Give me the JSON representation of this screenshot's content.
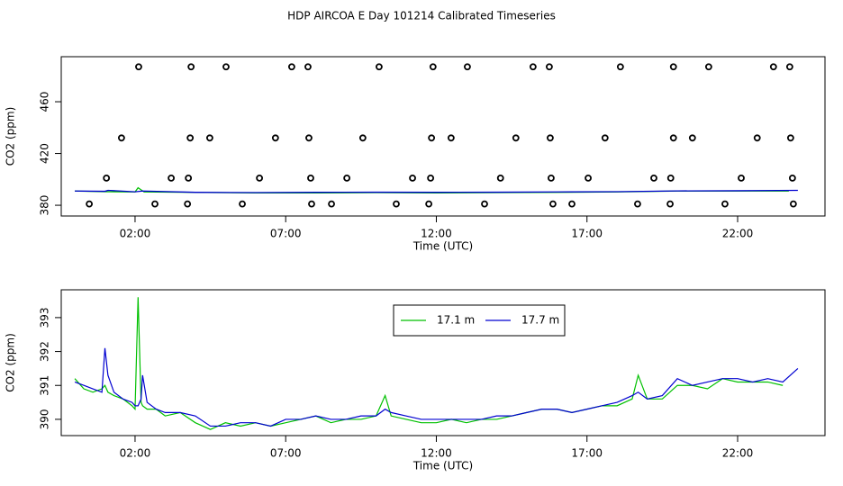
{
  "chart_data": [
    {
      "type": "scatter",
      "title": "HDP AIRCOA E  Day 101214  Calibrated Timeseries",
      "x_label": "Time (UTC)",
      "y_label": "CO2 (ppm)",
      "xlim": [
        -0.45,
        24.9
      ],
      "ylim": [
        371.7,
        494.8
      ],
      "xticks": [
        {
          "value": 2,
          "label": "02:00"
        },
        {
          "value": 7,
          "label": "07:00"
        },
        {
          "value": 12,
          "label": "12:00"
        },
        {
          "value": 17,
          "label": "17:00"
        },
        {
          "value": 22,
          "label": "22:00"
        }
      ],
      "yticks": [
        380,
        420,
        460
      ],
      "color": "#000000",
      "x": [
        2.12,
        3.86,
        5.02,
        7.2,
        7.74,
        10.1,
        11.89,
        13.03,
        15.21,
        15.75,
        18.11,
        19.87,
        21.04,
        23.19,
        23.73,
        1.55,
        3.83,
        4.48,
        6.66,
        7.77,
        9.56,
        11.84,
        12.49,
        14.64,
        15.78,
        17.6,
        19.87,
        20.5,
        22.65,
        23.76,
        1.05,
        3.2,
        3.77,
        6.13,
        7.83,
        9.03,
        11.21,
        11.81,
        14.13,
        15.81,
        17.04,
        19.22,
        19.78,
        22.12,
        23.82,
        0.48,
        2.66,
        3.74,
        5.56,
        7.86,
        8.52,
        10.67,
        11.75,
        13.6,
        15.87,
        16.5,
        18.68,
        19.76,
        21.58,
        23.85
      ],
      "values": [
        487,
        487,
        487,
        487,
        487,
        487,
        487,
        487,
        487,
        487,
        487,
        487,
        487,
        487,
        487,
        432,
        432,
        432,
        432,
        432,
        432,
        432,
        432,
        432,
        432,
        432,
        432,
        432,
        432,
        432,
        401,
        401,
        401,
        401,
        401,
        401,
        401,
        401,
        401,
        401,
        401,
        401,
        401,
        401,
        401,
        381,
        381,
        381,
        381,
        381,
        381,
        381,
        381,
        381,
        381,
        381,
        381,
        381,
        381,
        381
      ],
      "series": [
        {
          "color": "#00c000",
          "x": [
            0,
            1,
            2,
            2.1,
            2.3,
            4,
            6,
            8,
            10,
            12,
            14,
            16,
            18,
            20,
            22,
            23.7
          ],
          "values": [
            391,
            390.5,
            390.3,
            393.5,
            390.3,
            390,
            389.5,
            389.5,
            389.8,
            389.5,
            389.8,
            390,
            390.3,
            391,
            391,
            391
          ]
        },
        {
          "color": "#0000d0",
          "x": [
            0,
            1,
            1.1,
            2,
            2.25,
            4,
            6,
            8,
            10,
            12,
            14,
            16,
            18,
            20,
            22,
            24
          ],
          "values": [
            391,
            390.8,
            391.5,
            390.4,
            391,
            390,
            389.8,
            390,
            390.1,
            390,
            390.1,
            390.3,
            390.5,
            391.1,
            391.2,
            391.5
          ]
        }
      ]
    },
    {
      "type": "line",
      "x_label": "Time (UTC)",
      "y_label": "CO2 (ppm)",
      "xlim": [
        -0.45,
        24.9
      ],
      "ylim": [
        389.52,
        393.82
      ],
      "xticks": [
        {
          "value": 2,
          "label": "02:00"
        },
        {
          "value": 7,
          "label": "07:00"
        },
        {
          "value": 12,
          "label": "12:00"
        },
        {
          "value": 17,
          "label": "17:00"
        },
        {
          "value": 22,
          "label": "22:00"
        }
      ],
      "yticks": [
        390,
        391,
        392,
        393
      ],
      "legend": "top",
      "x": [
        0,
        0.3,
        0.6,
        0.9,
        1.0,
        1.1,
        1.3,
        1.6,
        1.9,
        2.0,
        2.1,
        2.2,
        2.25,
        2.4,
        2.7,
        3,
        3.5,
        4,
        4.5,
        5,
        5.5,
        6,
        6.5,
        7,
        7.5,
        8,
        8.5,
        9,
        9.5,
        10,
        10.3,
        10.5,
        11,
        11.5,
        12,
        12.5,
        13,
        13.5,
        14,
        14.5,
        15,
        15.5,
        16,
        16.5,
        17,
        17.5,
        18,
        18.5,
        18.7,
        19,
        19.5,
        20,
        20.5,
        21,
        21.5,
        22,
        22.5,
        23,
        23.5,
        24
      ],
      "series": [
        {
          "name": "17.1 m",
          "color": "#00c000",
          "values": [
            391.2,
            390.9,
            390.8,
            390.9,
            391.0,
            390.8,
            390.7,
            390.6,
            390.4,
            390.3,
            393.6,
            390.5,
            390.4,
            390.3,
            390.3,
            390.1,
            390.2,
            389.9,
            389.7,
            389.9,
            389.8,
            389.9,
            389.8,
            389.9,
            390.0,
            390.1,
            389.9,
            390.0,
            390.0,
            390.1,
            390.7,
            390.1,
            390.0,
            389.9,
            389.9,
            390.0,
            389.9,
            390.0,
            390.0,
            390.1,
            390.2,
            390.3,
            390.3,
            390.2,
            390.3,
            390.4,
            390.4,
            390.6,
            391.3,
            390.6,
            390.6,
            391.0,
            391.0,
            390.9,
            391.2,
            391.1,
            391.1,
            391.1,
            391.0,
            null
          ]
        },
        {
          "name": "17.7 m",
          "color": "#0000d0",
          "values": [
            391.1,
            391.0,
            390.9,
            390.8,
            392.1,
            391.3,
            390.8,
            390.6,
            390.5,
            390.4,
            390.4,
            390.6,
            391.3,
            390.5,
            390.3,
            390.2,
            390.2,
            390.1,
            389.8,
            389.8,
            389.9,
            389.9,
            389.8,
            390.0,
            390.0,
            390.1,
            390.0,
            390.0,
            390.1,
            390.1,
            390.3,
            390.2,
            390.1,
            390.0,
            390.0,
            390.0,
            390.0,
            390.0,
            390.1,
            390.1,
            390.2,
            390.3,
            390.3,
            390.2,
            390.3,
            390.4,
            390.5,
            390.7,
            390.8,
            390.6,
            390.7,
            391.2,
            391.0,
            391.1,
            391.2,
            391.2,
            391.1,
            391.2,
            391.1,
            391.5
          ]
        }
      ]
    }
  ]
}
